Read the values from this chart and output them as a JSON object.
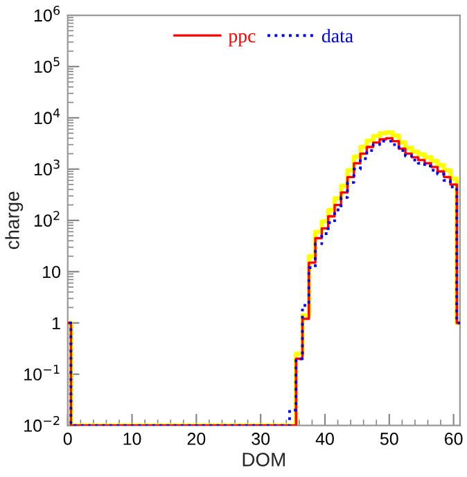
{
  "chart_data": {
    "type": "histogram",
    "xlabel": "DOM",
    "ylabel": "charge",
    "bins": [
      -0.5,
      0.5,
      1.5,
      2.5,
      3.5,
      4.5,
      5.5,
      6.5,
      7.5,
      8.5,
      9.5,
      10.5,
      11.5,
      12.5,
      13.5,
      14.5,
      15.5,
      16.5,
      17.5,
      18.5,
      19.5,
      20.5,
      21.5,
      22.5,
      23.5,
      24.5,
      25.5,
      26.5,
      27.5,
      28.5,
      29.5,
      30.5,
      31.5,
      32.5,
      33.5,
      34.5,
      35.5,
      36.5,
      37.5,
      38.5,
      39.5,
      40.5,
      41.5,
      42.5,
      43.5,
      44.5,
      45.5,
      46.5,
      47.5,
      48.5,
      49.5,
      50.5,
      51.5,
      52.5,
      53.5,
      54.5,
      55.5,
      56.5,
      57.5,
      58.5,
      59.5,
      60.5,
      61.5
    ],
    "series": [
      {
        "color": "#ffff00",
        "line_style": "solid",
        "values": [
          1,
          null,
          null,
          null,
          null,
          null,
          null,
          null,
          null,
          null,
          null,
          null,
          null,
          null,
          null,
          null,
          null,
          null,
          null,
          null,
          null,
          null,
          null,
          null,
          null,
          null,
          null,
          null,
          null,
          null,
          null,
          null,
          null,
          null,
          null,
          null,
          0.25,
          1.4,
          20,
          60,
          95,
          160,
          270,
          470,
          950,
          1750,
          2700,
          3600,
          4400,
          5000,
          5200,
          4500,
          3300,
          2600,
          2200,
          1950,
          1700,
          1450,
          1200,
          950,
          650,
          1
        ]
      },
      {
        "name": "ppc",
        "color": "#ff0000",
        "line_style": "solid",
        "values": [
          1,
          null,
          null,
          null,
          null,
          null,
          null,
          null,
          null,
          null,
          null,
          null,
          null,
          null,
          null,
          null,
          null,
          null,
          null,
          null,
          null,
          null,
          null,
          null,
          null,
          null,
          null,
          null,
          null,
          null,
          null,
          null,
          null,
          null,
          null,
          null,
          0.2,
          1.2,
          15,
          45,
          70,
          120,
          200,
          350,
          700,
          1300,
          2000,
          2700,
          3300,
          3800,
          4000,
          3500,
          2500,
          2000,
          1700,
          1500,
          1300,
          1100,
          900,
          700,
          500,
          1
        ]
      },
      {
        "name": "data",
        "color": "#0000ff",
        "line_style": "dotted",
        "values": [
          1,
          null,
          null,
          null,
          null,
          null,
          null,
          null,
          null,
          null,
          null,
          null,
          null,
          null,
          null,
          null,
          null,
          null,
          null,
          null,
          null,
          null,
          null,
          null,
          null,
          null,
          null,
          null,
          null,
          null,
          null,
          null,
          null,
          null,
          null,
          0.02,
          0.2,
          2.2,
          12,
          35,
          55,
          90,
          160,
          280,
          550,
          1000,
          1600,
          2300,
          3000,
          3500,
          3500,
          3000,
          2300,
          1800,
          1500,
          1300,
          1150,
          950,
          800,
          600,
          450,
          1
        ]
      }
    ],
    "log": "y",
    "xlim": [
      0,
      61
    ],
    "xticks": [
      0,
      10,
      20,
      30,
      40,
      50,
      60
    ],
    "ylim": [
      0.01,
      1000000
    ],
    "yticks": [
      {
        "value": 0.01,
        "label": "10$^{−2}$"
      },
      {
        "value": 0.1,
        "label": "10$^{−1}$"
      },
      1,
      10,
      {
        "value": 100,
        "label": "10$^{2}$"
      },
      {
        "value": 1000,
        "label": "10$^{3}$"
      },
      {
        "value": 10000,
        "label": "10$^{4}$"
      },
      {
        "value": 100000,
        "label": "10$^{5}$"
      },
      {
        "value": 1000000,
        "label": "10$^{6}$"
      }
    ],
    "grid": false,
    "legend": "top"
  }
}
